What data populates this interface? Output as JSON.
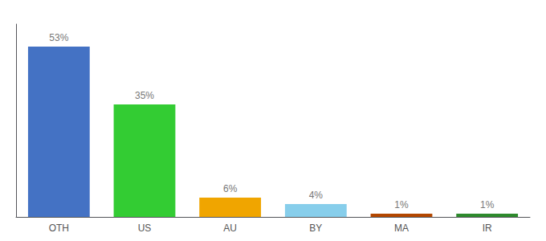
{
  "chart_data": {
    "type": "bar",
    "categories": [
      "OTH",
      "US",
      "AU",
      "BY",
      "MA",
      "IR"
    ],
    "values": [
      53,
      35,
      6,
      4,
      1,
      1
    ],
    "value_labels": [
      "53%",
      "35%",
      "6%",
      "4%",
      "1%",
      "1%"
    ],
    "colors": [
      "#4472c4",
      "#33cc33",
      "#f0a500",
      "#87ceeb",
      "#b34700",
      "#2d8a2d"
    ],
    "ylim": [
      0,
      60
    ],
    "grid": false,
    "data_labels": true,
    "tick_labels": "x"
  }
}
